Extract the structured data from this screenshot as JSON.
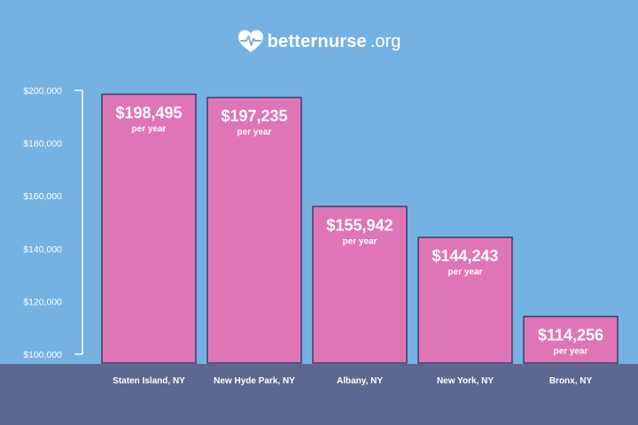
{
  "brand": {
    "name": "betternurse",
    "tld": ".org",
    "logo_icon": "heart-pulse-icon"
  },
  "colors": {
    "background": "#75b2e1",
    "bar_fill": "#e075b6",
    "bar_stroke": "#3a3f6a",
    "baseline_band": "#5e6790",
    "text": "#ffffff"
  },
  "chart_data": {
    "type": "bar",
    "categories": [
      "Staten Island, NY",
      "New Hyde Park, NY",
      "Albany, NY",
      "New York, NY",
      "Bronx, NY"
    ],
    "values": [
      198495,
      197235,
      155942,
      144243,
      114256
    ],
    "data_labels": [
      "$198,495",
      "$197,235",
      "$155,942",
      "$144,243",
      "$114,256"
    ],
    "value_sublabel": "per year",
    "y_ticks": [
      100000,
      120000,
      140000,
      160000,
      180000,
      200000
    ],
    "y_tick_labels": [
      "$100,000",
      "$120,000",
      "$140,000",
      "$160,000",
      "$180,000",
      "$200,000"
    ],
    "ylim": [
      100000,
      200000
    ],
    "grid": false,
    "legend": "none",
    "title": "",
    "xlabel": "",
    "ylabel": ""
  }
}
